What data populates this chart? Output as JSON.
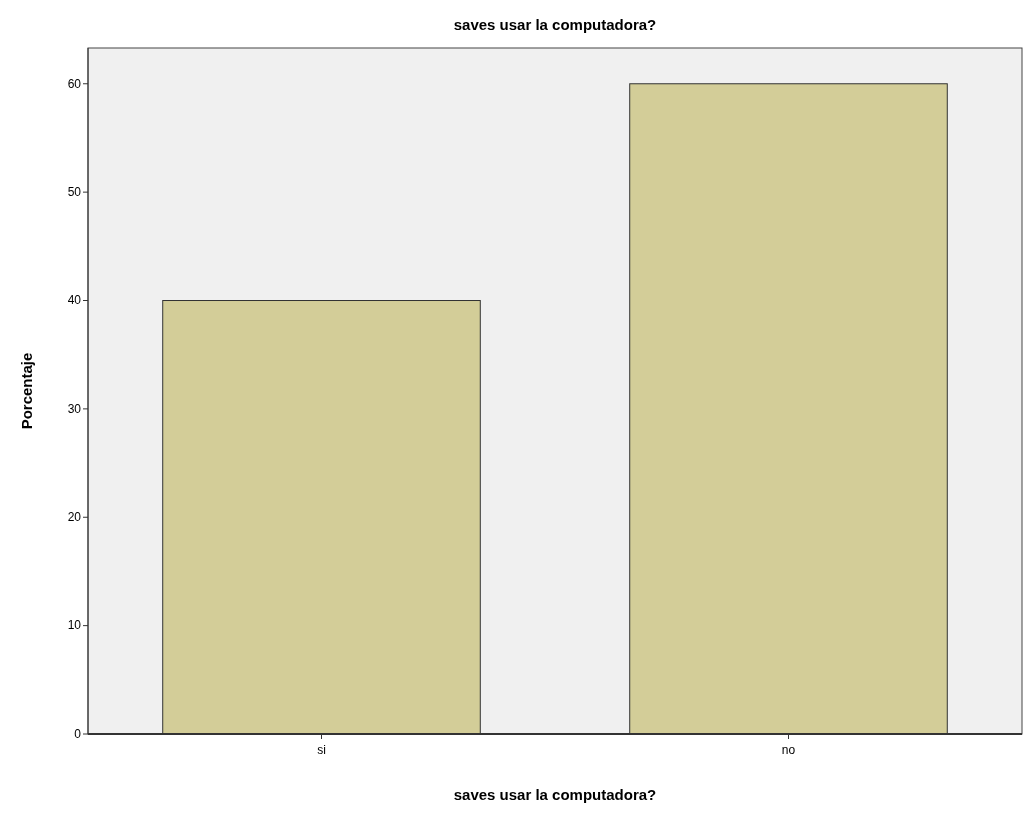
{
  "chart_data": {
    "type": "bar",
    "title": "saves usar la computadora?",
    "xlabel": "saves usar la computadora?",
    "ylabel": "Porcentaje",
    "categories": [
      "si",
      "no"
    ],
    "values": [
      40,
      60
    ],
    "color": "#d3cd98",
    "ylim": [
      0,
      63.3
    ],
    "yticks": [
      0,
      10,
      20,
      30,
      40,
      50,
      60
    ],
    "grid": false
  }
}
